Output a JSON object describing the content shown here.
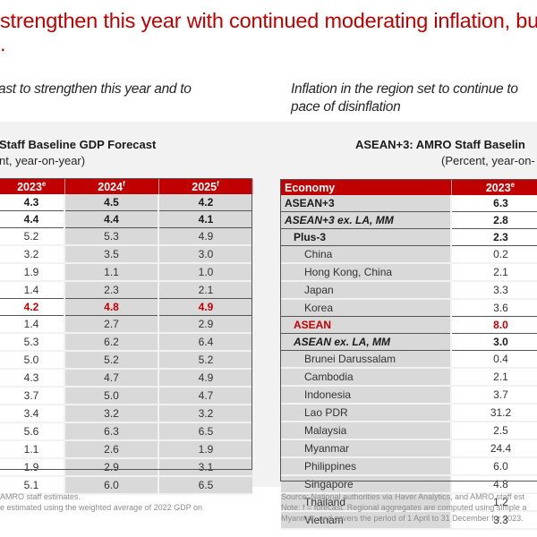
{
  "headline": {
    "line1": "strengthen this year with continued moderating inflation, bu",
    "line2": "."
  },
  "subtitles": {
    "left": "ast to strengthen this year and to",
    "right_line1": "Inflation in the region set to continue to",
    "right_line2": "pace of disinflation"
  },
  "gdp_table": {
    "title": "Staff Baseline GDP Forecast",
    "units": "nt, year-on-year)",
    "columns": [
      {
        "year": "2023",
        "sup": "e"
      },
      {
        "year": "2024",
        "sup": "f"
      },
      {
        "year": "2025",
        "sup": "f"
      }
    ],
    "rows": [
      {
        "style": "bold sep",
        "values": [
          "4.3",
          "4.5",
          "4.2"
        ]
      },
      {
        "style": "bold sep",
        "values": [
          "4.4",
          "4.4",
          "4.1"
        ]
      },
      {
        "style": "",
        "values": [
          "5.2",
          "5.3",
          "4.9"
        ]
      },
      {
        "style": "",
        "values": [
          "3.2",
          "3.5",
          "3.0"
        ]
      },
      {
        "style": "",
        "values": [
          "1.9",
          "1.1",
          "1.0"
        ]
      },
      {
        "style": "sep",
        "values": [
          "1.4",
          "2.3",
          "2.1"
        ]
      },
      {
        "style": "red sep",
        "values": [
          "4.2",
          "4.8",
          "4.9"
        ]
      },
      {
        "style": "",
        "values": [
          "1.4",
          "2.7",
          "2.9"
        ]
      },
      {
        "style": "",
        "values": [
          "5.3",
          "6.2",
          "6.4"
        ]
      },
      {
        "style": "",
        "values": [
          "5.0",
          "5.2",
          "5.2"
        ]
      },
      {
        "style": "",
        "values": [
          "4.3",
          "4.7",
          "4.9"
        ]
      },
      {
        "style": "",
        "values": [
          "3.7",
          "5.0",
          "4.7"
        ]
      },
      {
        "style": "",
        "values": [
          "3.4",
          "3.2",
          "3.2"
        ]
      },
      {
        "style": "",
        "values": [
          "5.6",
          "6.3",
          "6.5"
        ]
      },
      {
        "style": "",
        "values": [
          "1.1",
          "2.6",
          "1.9"
        ]
      },
      {
        "style": "",
        "values": [
          "1.9",
          "2.9",
          "3.1"
        ]
      },
      {
        "style": "",
        "values": [
          "5.1",
          "6.0",
          "6.5"
        ]
      }
    ],
    "notes": [
      "AMRO  staff estimates.",
      "e estimated using the  weighted average of 2022 GDP  on"
    ]
  },
  "inflation_table": {
    "title": "ASEAN+3: AMRO  Staff Baselin",
    "units": "(Percent, year-on-",
    "header_economy": "Economy",
    "columns": [
      {
        "year": "2023",
        "sup": "e"
      }
    ],
    "rows": [
      {
        "economy": "ASEAN+3",
        "style": "bold sep",
        "indent": 0,
        "value": "6.3"
      },
      {
        "economy": "ASEAN+3 ex. LA, MM",
        "style": "bold ital sep",
        "indent": 0,
        "value": "2.8"
      },
      {
        "economy": "Plus-3",
        "style": "bold sep",
        "indent": 1,
        "value": "2.3"
      },
      {
        "economy": "China",
        "style": "",
        "indent": 2,
        "value": "0.2"
      },
      {
        "economy": "Hong Kong, China",
        "style": "",
        "indent": 2,
        "value": "2.1"
      },
      {
        "economy": "Japan",
        "style": "",
        "indent": 2,
        "value": "3.3"
      },
      {
        "economy": "Korea",
        "style": "sep",
        "indent": 2,
        "value": "3.6"
      },
      {
        "economy": "ASEAN",
        "style": "red sep",
        "indent": 1,
        "value": "8.0"
      },
      {
        "economy": "ASEAN ex. LA, MM",
        "style": "bold ital sep",
        "indent": 1,
        "value": "3.0"
      },
      {
        "economy": "Brunei Darussalam",
        "style": "",
        "indent": 2,
        "value": "0.4"
      },
      {
        "economy": "Cambodia",
        "style": "",
        "indent": 2,
        "value": "2.1"
      },
      {
        "economy": "Indonesia",
        "style": "",
        "indent": 2,
        "value": "3.7"
      },
      {
        "economy": "Lao PDR",
        "style": "",
        "indent": 2,
        "value": "31.2"
      },
      {
        "economy": "Malaysia",
        "style": "",
        "indent": 2,
        "value": "2.5"
      },
      {
        "economy": "Myanmar",
        "style": "",
        "indent": 2,
        "value": "24.4"
      },
      {
        "economy": "Philippines",
        "style": "",
        "indent": 2,
        "value": "6.0"
      },
      {
        "economy": "Singapore",
        "style": "",
        "indent": 2,
        "value": "4.8"
      },
      {
        "economy": "Thailand",
        "style": "",
        "indent": 2,
        "value": "1.2"
      },
      {
        "economy": "Vietnam",
        "style": "",
        "indent": 2,
        "value": "3.3"
      }
    ],
    "notes": [
      "Source: National authorities via Haver Analytics, and AMRO  staff est",
      "Note:  f = forecast. Regional aggregates are computed using simple  a",
      "Myanmar, and covers the period of 1 April to 31 December for 2023."
    ]
  }
}
